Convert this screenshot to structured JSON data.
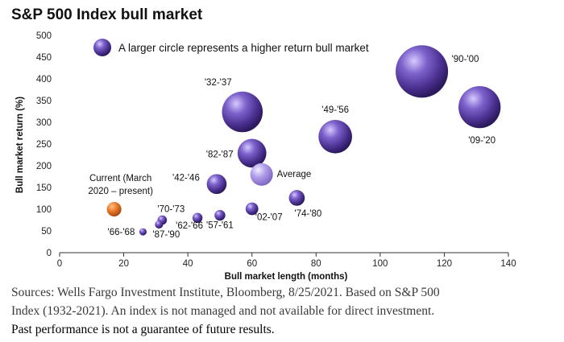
{
  "chart_data": {
    "type": "scatter",
    "title": "S&P 500 Index bull market",
    "xlabel": "Bull market length (months)",
    "ylabel": "Bull market return (%)",
    "xlim": [
      0,
      140
    ],
    "ylim": [
      0,
      500
    ],
    "xticks": [
      0,
      20,
      40,
      60,
      80,
      100,
      120,
      140
    ],
    "yticks": [
      0,
      50,
      100,
      150,
      200,
      250,
      300,
      350,
      400,
      450,
      500
    ],
    "legend": "A larger circle represents a higher return bull market",
    "colors": {
      "bubble": "#5a3fa3",
      "current": "#e07a28",
      "average": "#a890e0"
    },
    "points": [
      {
        "label": "'90-'00",
        "x": 113,
        "y": 417,
        "kind": "bull"
      },
      {
        "label": "'09-'20",
        "x": 131,
        "y": 335,
        "kind": "bull"
      },
      {
        "label": "'32-'37",
        "x": 57,
        "y": 324,
        "kind": "bull"
      },
      {
        "label": "'49-'56",
        "x": 86,
        "y": 267,
        "kind": "bull"
      },
      {
        "label": "'82-'87",
        "x": 60,
        "y": 229,
        "kind": "bull"
      },
      {
        "label": "Average",
        "x": 63,
        "y": 180,
        "kind": "average"
      },
      {
        "label": "'42-'46",
        "x": 49,
        "y": 158,
        "kind": "bull"
      },
      {
        "label": "'74-'80",
        "x": 74,
        "y": 126,
        "kind": "bull"
      },
      {
        "label": "'02-'07",
        "x": 60,
        "y": 101,
        "kind": "bull"
      },
      {
        "label": "'57-'61",
        "x": 50,
        "y": 86,
        "kind": "bull"
      },
      {
        "label": "'62-'66",
        "x": 43,
        "y": 80,
        "kind": "bull"
      },
      {
        "label": "'70-'73",
        "x": 32,
        "y": 75,
        "kind": "bull"
      },
      {
        "label": "'87-'90",
        "x": 31,
        "y": 65,
        "kind": "bull"
      },
      {
        "label": "'66-'68",
        "x": 26,
        "y": 48,
        "kind": "bull"
      },
      {
        "label": "Current (March 2020 – present)",
        "x": 17,
        "y": 100,
        "kind": "current"
      }
    ]
  },
  "footer": {
    "line1": "Sources: Wells Fargo Investment Institute, Bloomberg, 8/25/2021. Based on S&P 500",
    "line2": "Index (1932-2021). An index is not managed and not available for direct investment.",
    "line3": "Past performance is not a guarantee of future results."
  }
}
